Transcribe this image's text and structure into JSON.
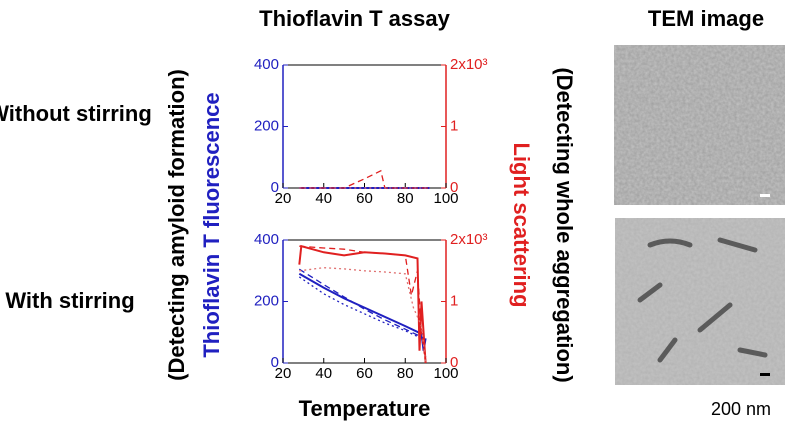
{
  "page": {
    "row_labels": [
      "Without stirring",
      "With stirring"
    ],
    "left_note": "(Detecting amyloid formation)",
    "right_note": "(Detecting whole aggregation)",
    "tem_title": "TEM image",
    "scale_label": "200 nm"
  },
  "chart_data": [
    {
      "type": "line",
      "title": "Thioflavin T assay",
      "ylabel": "Thioflavin T fluorescence",
      "y2label": "Light scattering",
      "xlim": [
        20,
        100
      ],
      "xticks": [
        20,
        40,
        60,
        80,
        100
      ],
      "ylim": [
        0,
        400
      ],
      "yticks": [
        0,
        200,
        400
      ],
      "y2lim": [
        0,
        2000
      ],
      "y2ticks": [
        0,
        {
          "value": 1000,
          "label": "1"
        },
        {
          "value": 2000,
          "label": "2x10³"
        }
      ],
      "series": [
        {
          "color": "#2020c0",
          "style": "solid",
          "x": [
            28,
            40,
            60,
            80,
            92
          ],
          "values": [
            0,
            0,
            0,
            0,
            0
          ]
        },
        {
          "color": "#e02020",
          "style": "dashed",
          "axis": "y2",
          "x": [
            28,
            50,
            60,
            68,
            70,
            80,
            92
          ],
          "values": [
            0,
            0,
            150,
            280,
            0,
            0,
            0
          ]
        },
        {
          "color": "#e07070",
          "style": "dotted",
          "axis": "y2",
          "x": [
            28,
            50,
            70,
            92
          ],
          "values": [
            0,
            0,
            0,
            0
          ]
        }
      ]
    },
    {
      "type": "line",
      "xlabel": "Temperature",
      "xlim": [
        20,
        100
      ],
      "xticks": [
        20,
        40,
        60,
        80,
        100
      ],
      "ylim": [
        0,
        400
      ],
      "yticks": [
        0,
        200,
        400
      ],
      "y2lim": [
        0,
        2000
      ],
      "y2ticks": [
        0,
        {
          "value": 1000,
          "label": "1"
        },
        {
          "value": 2000,
          "label": "2x10³"
        }
      ],
      "series": [
        {
          "color": "#2020c0",
          "style": "solid",
          "x": [
            28,
            40,
            50,
            60,
            70,
            80,
            88,
            89,
            90
          ],
          "values": [
            290,
            245,
            210,
            180,
            150,
            120,
            95,
            40,
            80
          ]
        },
        {
          "color": "#2020c0",
          "style": "dashed",
          "x": [
            28,
            40,
            50,
            60,
            70,
            80,
            88,
            90
          ],
          "values": [
            305,
            255,
            215,
            175,
            140,
            110,
            85,
            10
          ]
        },
        {
          "color": "#2020c0",
          "style": "dotted",
          "x": [
            28,
            40,
            50,
            60,
            70,
            80,
            88,
            90
          ],
          "values": [
            280,
            225,
            190,
            160,
            130,
            105,
            80,
            20
          ]
        },
        {
          "color": "#e02020",
          "style": "solid",
          "axis": "y2",
          "x": [
            28,
            29,
            40,
            50,
            60,
            70,
            80,
            86,
            87,
            88,
            90
          ],
          "values": [
            1600,
            1900,
            1800,
            1750,
            1800,
            1780,
            1750,
            1700,
            200,
            1000,
            0
          ]
        },
        {
          "color": "#e02020",
          "style": "dashed",
          "axis": "y2",
          "x": [
            28,
            40,
            50,
            60,
            70,
            80,
            83,
            86,
            88,
            90
          ],
          "values": [
            1900,
            1870,
            1850,
            1800,
            1780,
            1750,
            1100,
            1500,
            500,
            0
          ]
        },
        {
          "color": "#e07070",
          "style": "dotted",
          "axis": "y2",
          "x": [
            28,
            40,
            50,
            60,
            70,
            80,
            84,
            88,
            90
          ],
          "values": [
            1500,
            1550,
            1530,
            1500,
            1480,
            1450,
            900,
            600,
            0
          ]
        }
      ]
    }
  ]
}
